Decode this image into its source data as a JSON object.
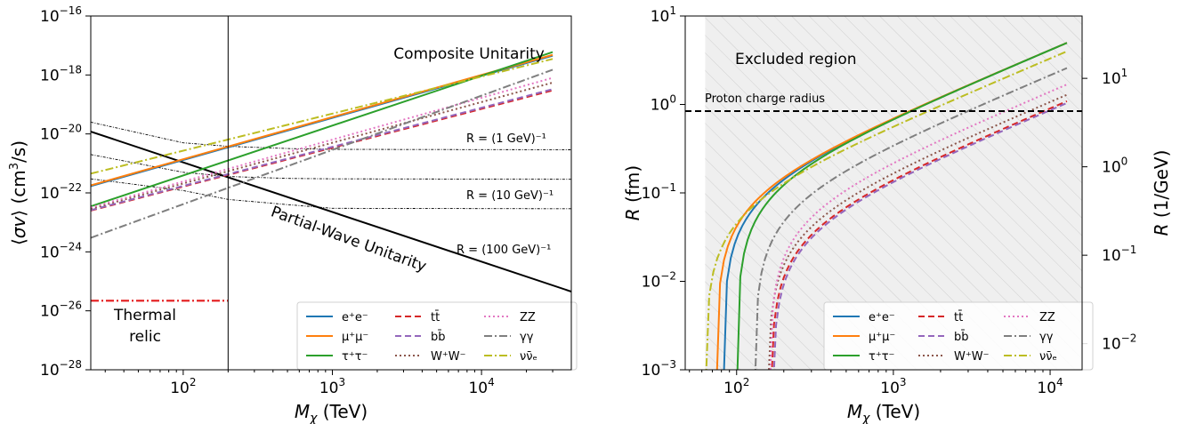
{
  "chart_data": [
    {
      "type": "line",
      "xscale": "log",
      "yscale": "log",
      "xlim": [
        24,
        40000
      ],
      "ylim": [
        1e-28,
        1e-16
      ],
      "xlabel": "M_χ (TeV)",
      "ylabel": "⟨σv⟩ (cm³/s)",
      "xticks": [
        {
          "v": 100,
          "label": "10",
          "exp": "2"
        },
        {
          "v": 1000,
          "label": "10",
          "exp": "3"
        },
        {
          "v": 10000,
          "label": "10",
          "exp": "4"
        }
      ],
      "yticks": [
        {
          "v": 1e-16,
          "label": "10",
          "exp": "−16"
        },
        {
          "v": 1e-18,
          "label": "10",
          "exp": "−18"
        },
        {
          "v": 1e-20,
          "label": "10",
          "exp": "−20"
        },
        {
          "v": 1e-22,
          "label": "10",
          "exp": "−22"
        },
        {
          "v": 1e-24,
          "label": "10",
          "exp": "−24"
        },
        {
          "v": 1e-26,
          "label": "10",
          "exp": "−26"
        },
        {
          "v": 1e-28,
          "label": "10",
          "exp": "−28"
        }
      ],
      "vline": 200,
      "series": [
        {
          "name": "e⁺e⁻",
          "color": "#1f77b4",
          "dash": "solid",
          "x": [
            24,
            30000
          ],
          "y": [
            1.7e-22,
            4.5e-18
          ]
        },
        {
          "name": "μ⁺μ⁻",
          "color": "#ff7f0e",
          "dash": "solid",
          "x": [
            24,
            30000
          ],
          "y": [
            1.8e-22,
            4.8e-18
          ]
        },
        {
          "name": "τ⁺τ⁻",
          "color": "#2ca02c",
          "dash": "solid",
          "x": [
            24,
            30000
          ],
          "y": [
            3.5e-23,
            6e-18
          ]
        },
        {
          "name": "tt̄",
          "color": "#d62728",
          "dash": "dashed",
          "x": [
            24,
            30000
          ],
          "y": [
            2.5e-23,
            3e-19
          ]
        },
        {
          "name": "bb̄",
          "color": "#9467bd",
          "dash": "dashed",
          "x": [
            24,
            30000
          ],
          "y": [
            2.6e-23,
            3.3e-19
          ]
        },
        {
          "name": "W⁺W⁻",
          "color": "#8c564b",
          "dash": "dotted",
          "x": [
            24,
            30000
          ],
          "y": [
            2.9e-23,
            5.5e-19
          ]
        },
        {
          "name": "ZZ",
          "color": "#e377c2",
          "dash": "dotted",
          "x": [
            24,
            30000
          ],
          "y": [
            3.2e-23,
            8e-19
          ]
        },
        {
          "name": "γγ",
          "color": "#7f7f7f",
          "dash": "dashdot",
          "x": [
            24,
            30000
          ],
          "y": [
            3e-24,
            1.5e-18
          ]
        },
        {
          "name": "νν̄ₑ",
          "color": "#bcbd22",
          "dash": "dashdot",
          "x": [
            24,
            30000
          ],
          "y": [
            4.5e-22,
            3.5e-18
          ]
        }
      ],
      "partial_wave": {
        "x": [
          24,
          40000
        ],
        "y": [
          1.2e-20,
          4.5e-26
        ]
      },
      "radius_curves": [
        {
          "label": "R = (1 GeV)⁻¹",
          "x": [
            24,
            100,
            200,
            500,
            1000,
            40000
          ],
          "y": [
            2.5e-20,
            5e-21,
            3.8e-21,
            3.2e-21,
            3e-21,
            2.9e-21
          ]
        },
        {
          "label": "R = (10 GeV)⁻¹",
          "x": [
            24,
            100,
            200,
            500,
            1000,
            40000
          ],
          "y": [
            2e-21,
            5e-22,
            3.6e-22,
            3.1e-22,
            3e-22,
            2.9e-22
          ]
        },
        {
          "label": "R = (100 GeV)⁻¹",
          "x": [
            24,
            100,
            200,
            500,
            1000,
            40000
          ],
          "y": [
            3e-22,
            1.2e-22,
            6e-23,
            4e-23,
            3e-23,
            2.9e-23
          ]
        }
      ],
      "thermal_relic": {
        "label_line1": "Thermal",
        "label_line2": "relic",
        "x": [
          24,
          200
        ],
        "y": 2.2e-26
      },
      "annotations": {
        "composite": "Composite Unitarity",
        "partial_wave": "Partial-Wave Unitarity"
      }
    },
    {
      "type": "line",
      "xscale": "log",
      "yscale": "log",
      "xlim": [
        47,
        16000
      ],
      "ylim": [
        0.001,
        10
      ],
      "xlabel": "M_χ (TeV)",
      "ylabel": "R (fm)",
      "y2label": "R (1/GeV)",
      "xticks": [
        {
          "v": 100,
          "label": "10",
          "exp": "2"
        },
        {
          "v": 1000,
          "label": "10",
          "exp": "3"
        },
        {
          "v": 10000,
          "label": "10",
          "exp": "4"
        }
      ],
      "yticks": [
        {
          "v": 10,
          "label": "10",
          "exp": "1"
        },
        {
          "v": 1,
          "label": "10",
          "exp": "0"
        },
        {
          "v": 0.1,
          "label": "10",
          "exp": "−1"
        },
        {
          "v": 0.01,
          "label": "10",
          "exp": "−2"
        },
        {
          "v": 0.001,
          "label": "10",
          "exp": "−3"
        }
      ],
      "y2ticks": [
        {
          "v": 1.973,
          "label": "10",
          "exp": "1"
        },
        {
          "v": 0.1973,
          "label": "10",
          "exp": "0"
        },
        {
          "v": 0.01973,
          "label": "10",
          "exp": "−1"
        },
        {
          "v": 0.001973,
          "label": "10",
          "exp": "−2"
        }
      ],
      "proton_radius": {
        "label": "Proton charge radius",
        "y": 0.84
      },
      "excluded": {
        "label": "Excluded region",
        "x_start": 63
      },
      "series": [
        {
          "name": "e⁺e⁻",
          "color": "#1f77b4",
          "dash": "solid",
          "threshold": 82,
          "endpoint": [
            12800,
            5.0
          ]
        },
        {
          "name": "μ⁺μ⁻",
          "color": "#ff7f0e",
          "dash": "solid",
          "threshold": 74,
          "endpoint": [
            12800,
            5.0
          ]
        },
        {
          "name": "τ⁺τ⁻",
          "color": "#2ca02c",
          "dash": "solid",
          "threshold": 100,
          "endpoint": [
            12800,
            5.0
          ]
        },
        {
          "name": "tt̄",
          "color": "#d62728",
          "dash": "dashed",
          "threshold": 165,
          "endpoint": [
            12800,
            1.1
          ]
        },
        {
          "name": "bb̄",
          "color": "#9467bd",
          "dash": "dashed",
          "threshold": 170,
          "endpoint": [
            12800,
            1.05
          ]
        },
        {
          "name": "W⁺W⁻",
          "color": "#8c564b",
          "dash": "dotted",
          "threshold": 158,
          "endpoint": [
            12800,
            1.3
          ]
        },
        {
          "name": "ZZ",
          "color": "#e377c2",
          "dash": "dotted",
          "threshold": 162,
          "endpoint": [
            12800,
            1.7
          ]
        },
        {
          "name": "γγ",
          "color": "#7f7f7f",
          "dash": "dashdot",
          "threshold": 130,
          "endpoint": [
            12800,
            2.6
          ]
        },
        {
          "name": "νν̄ₑ",
          "color": "#bcbd22",
          "dash": "dashdot",
          "threshold": 63,
          "endpoint": [
            12800,
            4.0
          ]
        }
      ]
    }
  ]
}
